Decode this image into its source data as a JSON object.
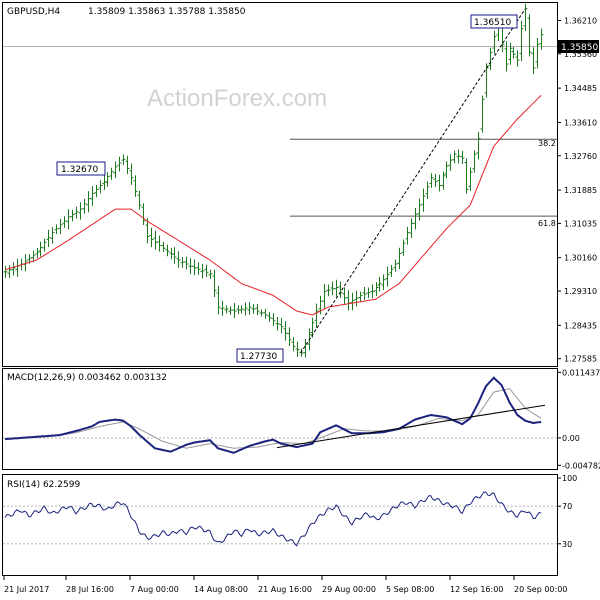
{
  "header": {
    "symbol": "GBPUSD,H4",
    "ohlc": "1.35809 1.35863 1.35788 1.35850"
  },
  "watermark": "ActionForex.com",
  "colors": {
    "price_bars": "#1f7a1f",
    "moving_average": "#e8202a",
    "macd_line": "#1a237e",
    "signal_line": "#999999",
    "trendline": "#000000",
    "fib_lines": "#555555"
  },
  "chart_data": [
    {
      "type": "ohlc",
      "panel": "price",
      "y_ticks": [
        "1.36210",
        "1.35360",
        "1.34485",
        "1.33610",
        "1.32760",
        "1.31885",
        "1.31035",
        "1.30160",
        "1.29310",
        "1.28435",
        "1.27585"
      ],
      "ylim": [
        1.275,
        1.3658
      ],
      "current_price": "1.35850",
      "annotations": {
        "high_left": "1.32670",
        "low": "1.27730",
        "high_right": "1.36510",
        "fib_382": "38.2",
        "fib_618": "61.8"
      },
      "fib_levels": [
        1.3318,
        1.3122
      ],
      "price_path": [
        [
          0,
          1.298
        ],
        [
          4,
          1.3
        ],
        [
          8,
          1.303
        ],
        [
          12,
          1.308
        ],
        [
          16,
          1.312
        ],
        [
          19,
          1.314
        ],
        [
          22,
          1.318
        ],
        [
          25,
          1.321
        ],
        [
          28,
          1.3248
        ],
        [
          30,
          1.3267
        ],
        [
          32,
          1.322
        ],
        [
          34,
          1.315
        ],
        [
          36,
          1.307
        ],
        [
          40,
          1.304
        ],
        [
          44,
          1.301
        ],
        [
          48,
          1.299
        ],
        [
          52,
          1.2975
        ],
        [
          54,
          1.289
        ],
        [
          58,
          1.288
        ],
        [
          62,
          1.289
        ],
        [
          66,
          1.287
        ],
        [
          70,
          1.284
        ],
        [
          73,
          1.279
        ],
        [
          75,
          1.2773
        ],
        [
          77,
          1.282
        ],
        [
          79,
          1.288
        ],
        [
          81,
          1.293
        ],
        [
          84,
          1.294
        ],
        [
          87,
          1.29
        ],
        [
          90,
          1.292
        ],
        [
          93,
          1.293
        ],
        [
          96,
          1.296
        ],
        [
          99,
          1.3
        ],
        [
          102,
          1.308
        ],
        [
          105,
          1.315
        ],
        [
          108,
          1.322
        ],
        [
          110,
          1.32
        ],
        [
          112,
          1.325
        ],
        [
          114,
          1.328
        ],
        [
          116,
          1.327
        ],
        [
          117,
          1.319
        ],
        [
          119,
          1.328
        ],
        [
          120,
          1.332
        ],
        [
          121,
          1.342
        ],
        [
          122,
          1.35
        ],
        [
          124,
          1.358
        ],
        [
          125,
          1.362
        ],
        [
          126,
          1.356
        ],
        [
          127,
          1.351
        ],
        [
          128,
          1.355
        ],
        [
          130,
          1.352
        ],
        [
          131,
          1.36
        ],
        [
          132,
          1.3651
        ],
        [
          133,
          1.354
        ],
        [
          134,
          1.35
        ],
        [
          135,
          1.356
        ],
        [
          136,
          1.3585
        ]
      ],
      "moving_average": [
        [
          0,
          1.2985
        ],
        [
          8,
          1.301
        ],
        [
          16,
          1.306
        ],
        [
          22,
          1.31
        ],
        [
          28,
          1.314
        ],
        [
          32,
          1.314
        ],
        [
          36,
          1.311
        ],
        [
          44,
          1.306
        ],
        [
          52,
          1.301
        ],
        [
          60,
          1.295
        ],
        [
          68,
          1.292
        ],
        [
          74,
          1.288
        ],
        [
          78,
          1.287
        ],
        [
          82,
          1.289
        ],
        [
          88,
          1.29
        ],
        [
          94,
          1.291
        ],
        [
          100,
          1.295
        ],
        [
          106,
          1.302
        ],
        [
          112,
          1.309
        ],
        [
          118,
          1.315
        ],
        [
          124,
          1.33
        ],
        [
          130,
          1.337
        ],
        [
          136,
          1.343
        ]
      ],
      "trendline": {
        "from": [
          75,
          1.2773
        ],
        "to": [
          132,
          1.3651
        ]
      }
    },
    {
      "type": "line",
      "panel": "macd",
      "label": "MACD(12,26,9) 0.003462 0.003132",
      "y_ticks": [
        "0.011437",
        "0.00",
        "-0.004782"
      ],
      "ylim": [
        -0.0049,
        0.0115
      ],
      "macd": [
        [
          0,
          -0.0002
        ],
        [
          6,
          0.0001
        ],
        [
          10,
          0.0003
        ],
        [
          14,
          0.0005
        ],
        [
          18,
          0.0012
        ],
        [
          22,
          0.002
        ],
        [
          24,
          0.0028
        ],
        [
          28,
          0.0032
        ],
        [
          30,
          0.003
        ],
        [
          32,
          0.002
        ],
        [
          34,
          0.0006
        ],
        [
          38,
          -0.0018
        ],
        [
          42,
          -0.0024
        ],
        [
          46,
          -0.0012
        ],
        [
          48,
          -0.0008
        ],
        [
          52,
          -0.0004
        ],
        [
          54,
          -0.0018
        ],
        [
          58,
          -0.0026
        ],
        [
          62,
          -0.0014
        ],
        [
          66,
          -0.0006
        ],
        [
          68,
          -0.0003
        ],
        [
          70,
          -0.001
        ],
        [
          74,
          -0.0016
        ],
        [
          78,
          -0.001
        ],
        [
          80,
          0.001
        ],
        [
          84,
          0.0022
        ],
        [
          88,
          0.0008
        ],
        [
          92,
          0.0008
        ],
        [
          96,
          0.001
        ],
        [
          100,
          0.0016
        ],
        [
          104,
          0.0032
        ],
        [
          108,
          0.004
        ],
        [
          112,
          0.0036
        ],
        [
          114,
          0.003
        ],
        [
          116,
          0.0024
        ],
        [
          118,
          0.0034
        ],
        [
          120,
          0.006
        ],
        [
          122,
          0.009
        ],
        [
          124,
          0.0105
        ],
        [
          126,
          0.0092
        ],
        [
          128,
          0.0062
        ],
        [
          130,
          0.004
        ],
        [
          132,
          0.003
        ],
        [
          134,
          0.0026
        ],
        [
          136,
          0.0028
        ]
      ],
      "signal": [
        [
          0,
          -0.0003
        ],
        [
          6,
          0.0
        ],
        [
          12,
          0.0003
        ],
        [
          18,
          0.0009
        ],
        [
          24,
          0.002
        ],
        [
          30,
          0.0028
        ],
        [
          34,
          0.0016
        ],
        [
          40,
          -0.0006
        ],
        [
          46,
          -0.0018
        ],
        [
          52,
          -0.001
        ],
        [
          58,
          -0.0018
        ],
        [
          64,
          -0.0016
        ],
        [
          70,
          -0.0008
        ],
        [
          76,
          -0.001
        ],
        [
          80,
          0.0
        ],
        [
          86,
          0.0016
        ],
        [
          92,
          0.0012
        ],
        [
          98,
          0.0012
        ],
        [
          104,
          0.002
        ],
        [
          110,
          0.0034
        ],
        [
          116,
          0.003
        ],
        [
          120,
          0.004
        ],
        [
          124,
          0.008
        ],
        [
          128,
          0.0086
        ],
        [
          132,
          0.0052
        ],
        [
          136,
          0.0034
        ]
      ],
      "trendline": {
        "from": [
          69,
          -0.0017
        ],
        "to": [
          137,
          0.0057
        ]
      }
    },
    {
      "type": "line",
      "panel": "rsi",
      "label": "RSI(14) 62.2599",
      "y_ticks": [
        "100",
        "70",
        "30",
        "0"
      ],
      "ylim": [
        0,
        100
      ],
      "levels": [
        70,
        30
      ],
      "values": [
        [
          0,
          58
        ],
        [
          2,
          62
        ],
        [
          4,
          66
        ],
        [
          6,
          60
        ],
        [
          8,
          64
        ],
        [
          10,
          68
        ],
        [
          12,
          62
        ],
        [
          14,
          66
        ],
        [
          16,
          70
        ],
        [
          18,
          64
        ],
        [
          20,
          68
        ],
        [
          22,
          72
        ],
        [
          24,
          70
        ],
        [
          26,
          66
        ],
        [
          28,
          72
        ],
        [
          30,
          74
        ],
        [
          32,
          60
        ],
        [
          34,
          44
        ],
        [
          36,
          36
        ],
        [
          38,
          38
        ],
        [
          40,
          42
        ],
        [
          42,
          40
        ],
        [
          44,
          44
        ],
        [
          46,
          42
        ],
        [
          48,
          48
        ],
        [
          50,
          46
        ],
        [
          52,
          42
        ],
        [
          54,
          30
        ],
        [
          56,
          36
        ],
        [
          58,
          44
        ],
        [
          60,
          40
        ],
        [
          62,
          46
        ],
        [
          64,
          40
        ],
        [
          66,
          42
        ],
        [
          68,
          44
        ],
        [
          70,
          38
        ],
        [
          72,
          34
        ],
        [
          74,
          30
        ],
        [
          76,
          40
        ],
        [
          78,
          52
        ],
        [
          80,
          60
        ],
        [
          82,
          66
        ],
        [
          84,
          70
        ],
        [
          86,
          60
        ],
        [
          88,
          52
        ],
        [
          90,
          58
        ],
        [
          92,
          62
        ],
        [
          94,
          56
        ],
        [
          96,
          60
        ],
        [
          98,
          66
        ],
        [
          100,
          72
        ],
        [
          102,
          74
        ],
        [
          104,
          70
        ],
        [
          106,
          76
        ],
        [
          108,
          80
        ],
        [
          110,
          76
        ],
        [
          112,
          72
        ],
        [
          114,
          70
        ],
        [
          116,
          64
        ],
        [
          118,
          74
        ],
        [
          120,
          80
        ],
        [
          122,
          84
        ],
        [
          124,
          82
        ],
        [
          126,
          72
        ],
        [
          128,
          64
        ],
        [
          130,
          60
        ],
        [
          132,
          66
        ],
        [
          134,
          58
        ],
        [
          136,
          62
        ]
      ]
    }
  ],
  "x_axis": {
    "labels": [
      "21 Jul 2017",
      "28 Jul 16:00",
      "7 Aug 00:00",
      "14 Aug 08:00",
      "21 Aug 16:00",
      "29 Aug 00:00",
      "5 Sep 08:00",
      "12 Sep 16:00",
      "20 Sep 00:00"
    ]
  }
}
